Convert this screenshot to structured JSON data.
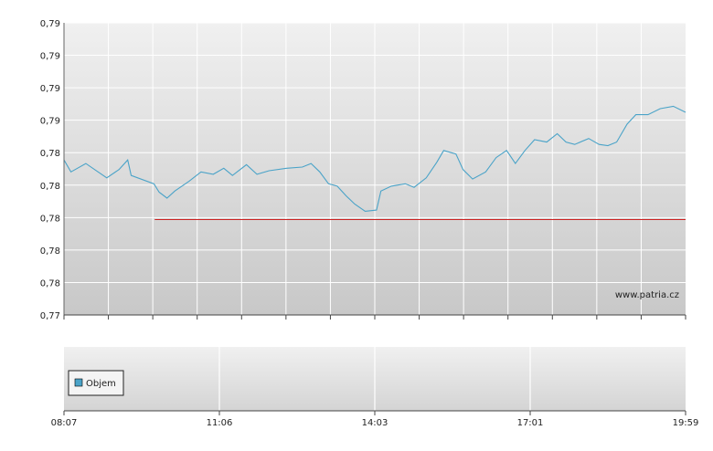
{
  "chart_data": [
    {
      "type": "line",
      "watermark": "www.patria.cz",
      "y_tick_labels": [
        "0,77",
        "0,78",
        "0,78",
        "0,78",
        "0,78",
        "0,78",
        "0,79",
        "0,79",
        "0,79",
        "0,79"
      ],
      "ylim": [
        0.77,
        0.7945
      ],
      "grid": true,
      "series": [
        {
          "color": "#4aa3c8",
          "points": [
            [
              "08:07",
              0.783
            ],
            [
              "08:15",
              0.782
            ],
            [
              "08:32",
              0.7827
            ],
            [
              "08:56",
              0.7815
            ],
            [
              "09:10",
              0.7822
            ],
            [
              "09:20",
              0.783
            ],
            [
              "09:24",
              0.7817
            ],
            [
              "09:50",
              0.781
            ],
            [
              "09:56",
              0.7803
            ],
            [
              "10:05",
              0.7798
            ],
            [
              "10:14",
              0.7804
            ],
            [
              "10:30",
              0.7812
            ],
            [
              "10:44",
              0.782
            ],
            [
              "10:58",
              0.7818
            ],
            [
              "11:10",
              0.7823
            ],
            [
              "11:20",
              0.7817
            ],
            [
              "11:36",
              0.7826
            ],
            [
              "11:48",
              0.7818
            ],
            [
              "12:02",
              0.7821
            ],
            [
              "12:22",
              0.7823
            ],
            [
              "12:40",
              0.7824
            ],
            [
              "12:50",
              0.7827
            ],
            [
              "13:00",
              0.782
            ],
            [
              "13:10",
              0.781
            ],
            [
              "13:20",
              0.7808
            ],
            [
              "13:30",
              0.78
            ],
            [
              "13:40",
              0.7793
            ],
            [
              "13:52",
              0.7787
            ],
            [
              "14:05",
              0.7788
            ],
            [
              "14:10",
              0.7804
            ],
            [
              "14:22",
              0.7808
            ],
            [
              "14:38",
              0.781
            ],
            [
              "14:48",
              0.7807
            ],
            [
              "15:02",
              0.7815
            ],
            [
              "15:14",
              0.7828
            ],
            [
              "15:22",
              0.7838
            ],
            [
              "15:36",
              0.7835
            ],
            [
              "15:44",
              0.7822
            ],
            [
              "15:55",
              0.7814
            ],
            [
              "16:10",
              0.782
            ],
            [
              "16:22",
              0.7832
            ],
            [
              "16:34",
              0.7838
            ],
            [
              "16:44",
              0.7827
            ],
            [
              "16:55",
              0.7838
            ],
            [
              "17:06",
              0.7847
            ],
            [
              "17:20",
              0.7845
            ],
            [
              "17:32",
              0.7852
            ],
            [
              "17:42",
              0.7845
            ],
            [
              "17:52",
              0.7843
            ],
            [
              "18:08",
              0.7848
            ],
            [
              "18:20",
              0.7843
            ],
            [
              "18:30",
              0.7842
            ],
            [
              "18:40",
              0.7845
            ],
            [
              "18:52",
              0.786
            ],
            [
              "19:02",
              0.7868
            ],
            [
              "19:16",
              0.7868
            ],
            [
              "19:30",
              0.7873
            ],
            [
              "19:45",
              0.7875
            ],
            [
              "19:59",
              0.787
            ]
          ]
        },
        {
          "color": "#cc2222",
          "points": [
            [
              "09:51",
              0.778
            ],
            [
              "19:59",
              0.778
            ]
          ]
        }
      ]
    },
    {
      "type": "bar",
      "x_tick_labels": [
        "08:07",
        "11:06",
        "14:03",
        "17:01",
        "19:59"
      ],
      "legend": {
        "label": "Objem",
        "color": "#4aa3c8",
        "placement": "left"
      },
      "values": []
    }
  ]
}
